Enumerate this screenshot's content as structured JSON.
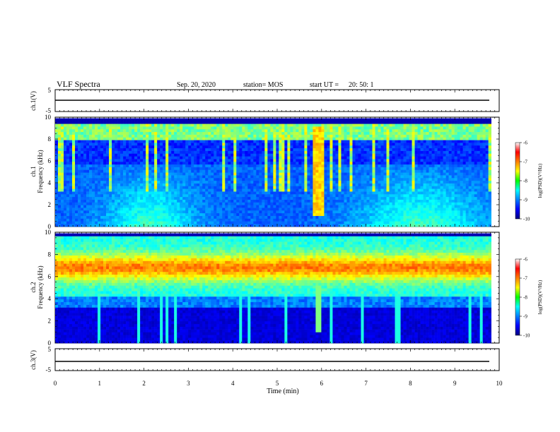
{
  "header": {
    "title": "VLF Spectra",
    "date": "Sep. 20, 2020",
    "station": "station= MOS",
    "start_ut_label": "start  UT =",
    "start_ut_value": "20: 50: 1"
  },
  "chart_data": {
    "type": "heatmap",
    "x": {
      "label": "Time  (min)",
      "range": [
        0,
        10
      ],
      "ticks": [
        "0",
        "1",
        "2",
        "3",
        "4",
        "5",
        "6",
        "7",
        "8",
        "9",
        "10"
      ]
    },
    "panels": [
      {
        "name": "ch1_voltage",
        "ylabel": "ch.1(V)",
        "ylim": [
          -5,
          5
        ],
        "yticks": [
          "5",
          "-5"
        ],
        "trace_value": 0
      },
      {
        "name": "ch1_spectrogram",
        "ylabel_top": "ch.1",
        "ylabel": "Frequency  (kHz)",
        "ylim": [
          0,
          10
        ],
        "yticks": [
          "0",
          "2",
          "4",
          "6",
          "8",
          "10"
        ],
        "colorbar": {
          "label": "log(PSD)(V²/Hz)",
          "range": [
            -10,
            -6
          ],
          "ticks": [
            "-6",
            "-7",
            "-8",
            "-9",
            "-10"
          ]
        }
      },
      {
        "name": "ch2_spectrogram",
        "ylabel_top": "ch.2",
        "ylabel": "Frequency  (kHz)",
        "ylim": [
          0,
          10
        ],
        "yticks": [
          "0",
          "2",
          "4",
          "6",
          "8",
          "10"
        ],
        "colorbar": {
          "label": "log(PSD)(V²/Hz)",
          "range": [
            -10,
            -6
          ],
          "ticks": [
            "-6",
            "-7",
            "-8",
            "-9",
            "-10"
          ]
        }
      },
      {
        "name": "ch3_voltage",
        "ylabel": "ch.3(V)",
        "ylim": [
          -5,
          5
        ],
        "yticks": [
          "5",
          "-5"
        ],
        "trace_value": 0
      }
    ],
    "grid": false
  }
}
